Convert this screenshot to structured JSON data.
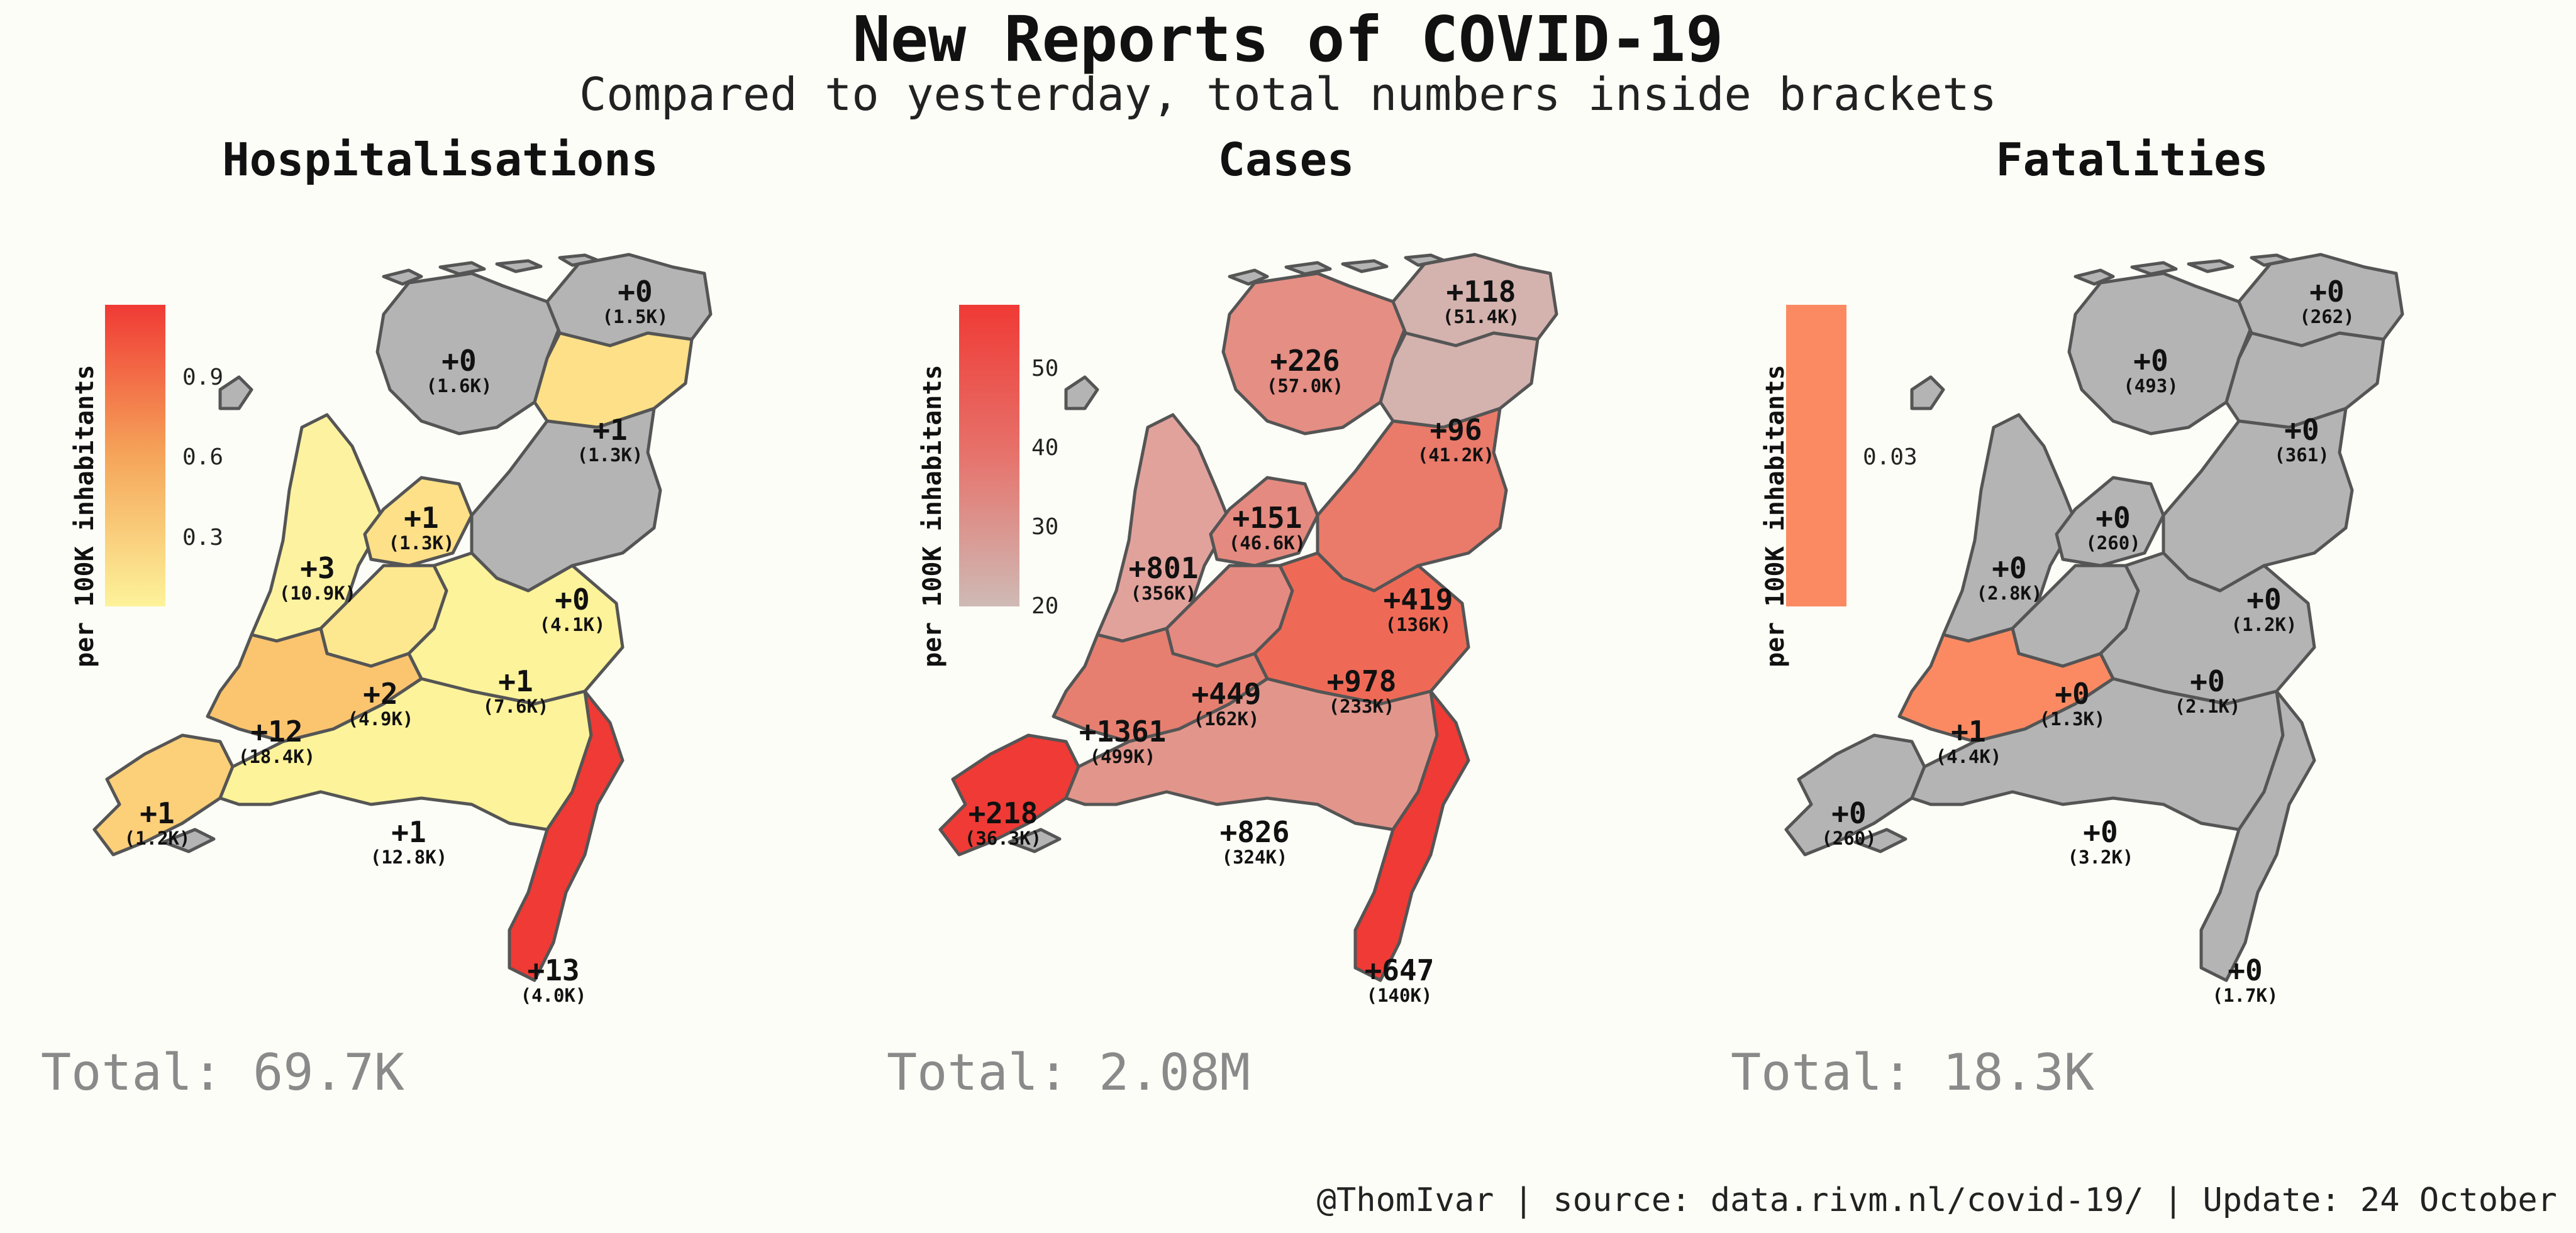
{
  "title": "New Reports of COVID-19",
  "subtitle": "Compared to yesterday, total numbers inside brackets",
  "legend_label": "per 100K inhabitants",
  "footer": "@ThomIvar | source: data.rivm.nl/covid-19/ | Update: 24 October",
  "panels": [
    {
      "title": "Hospitalisations",
      "total": "Total: 69.7K",
      "legend_ticks": [
        "0.9",
        "0.6",
        "0.3"
      ],
      "legend_gradient": [
        "#f03a35",
        "#f5a55a",
        "#fdf39a"
      ],
      "regions": {
        "Groningen": {
          "value": "+0",
          "total": "(1.5K)",
          "color": "#b4b4b4"
        },
        "Friesland": {
          "value": "+0",
          "total": "(1.6K)",
          "color": "#b4b4b4"
        },
        "Drenthe": {
          "value": "+1",
          "total": "(1.3K)",
          "color": "#fde087"
        },
        "Noord-Holland": {
          "value": "+3",
          "total": "(10.9K)",
          "color": "#fdf2a0"
        },
        "Flevoland": {
          "value": "+1",
          "total": "(1.3K)",
          "color": "#fde087"
        },
        "Overijssel": {
          "value": "+0",
          "total": "(4.1K)",
          "color": "#b4b4b4"
        },
        "Utrecht": {
          "value": "+2",
          "total": "(4.9K)",
          "color": "#fde88f"
        },
        "Gelderland": {
          "value": "+1",
          "total": "(7.6K)",
          "color": "#fdf39a"
        },
        "Zuid-Holland": {
          "value": "+12",
          "total": "(18.4K)",
          "color": "#fbc56f"
        },
        "Zeeland": {
          "value": "+1",
          "total": "(1.2K)",
          "color": "#fccf79"
        },
        "Noord-Brabant": {
          "value": "+1",
          "total": "(12.8K)",
          "color": "#fdf39a"
        },
        "Limburg": {
          "value": "+13",
          "total": "(4.0K)",
          "color": "#f03a35"
        }
      }
    },
    {
      "title": "Cases",
      "total": "Total: 2.08M",
      "legend_ticks": [
        "50",
        "40",
        "30",
        "20"
      ],
      "legend_gradient": [
        "#f03a35",
        "#e6736c",
        "#cfbab5"
      ],
      "regions": {
        "Groningen": {
          "value": "+118",
          "total": "(51.4K)",
          "color": "#d4b2ae"
        },
        "Friesland": {
          "value": "+226",
          "total": "(57.0K)",
          "color": "#e58e84"
        },
        "Drenthe": {
          "value": "+96",
          "total": "(41.2K)",
          "color": "#d4b2ae"
        },
        "Noord-Holland": {
          "value": "+801",
          "total": "(356K)",
          "color": "#e2a29c"
        },
        "Flevoland": {
          "value": "+151",
          "total": "(46.6K)",
          "color": "#e58a80"
        },
        "Overijssel": {
          "value": "+419",
          "total": "(136K)",
          "color": "#ea7a6a"
        },
        "Utrecht": {
          "value": "+449",
          "total": "(162K)",
          "color": "#e58a80"
        },
        "Gelderland": {
          "value": "+978",
          "total": "(233K)",
          "color": "#ef6a56"
        },
        "Zuid-Holland": {
          "value": "+1361",
          "total": "(499K)",
          "color": "#e67f70"
        },
        "Zeeland": {
          "value": "+218",
          "total": "(36.3K)",
          "color": "#f03a35"
        },
        "Noord-Brabant": {
          "value": "+826",
          "total": "(324K)",
          "color": "#e2968b"
        },
        "Limburg": {
          "value": "+647",
          "total": "(140K)",
          "color": "#f03a35"
        }
      }
    },
    {
      "title": "Fatalities",
      "total": "Total: 18.3K",
      "legend_ticks": [
        "0.03"
      ],
      "legend_gradient": [
        "#fb8a62",
        "#fb8a62",
        "#fb8a62"
      ],
      "regions": {
        "Groningen": {
          "value": "+0",
          "total": "(262)",
          "color": "#b4b4b4"
        },
        "Friesland": {
          "value": "+0",
          "total": "(493)",
          "color": "#b4b4b4"
        },
        "Drenthe": {
          "value": "+0",
          "total": "(361)",
          "color": "#b4b4b4"
        },
        "Noord-Holland": {
          "value": "+0",
          "total": "(2.8K)",
          "color": "#b4b4b4"
        },
        "Flevoland": {
          "value": "+0",
          "total": "(260)",
          "color": "#b4b4b4"
        },
        "Overijssel": {
          "value": "+0",
          "total": "(1.2K)",
          "color": "#b4b4b4"
        },
        "Utrecht": {
          "value": "+0",
          "total": "(1.3K)",
          "color": "#b4b4b4"
        },
        "Gelderland": {
          "value": "+0",
          "total": "(2.1K)",
          "color": "#b4b4b4"
        },
        "Zuid-Holland": {
          "value": "+1",
          "total": "(4.4K)",
          "color": "#fb8a62"
        },
        "Zeeland": {
          "value": "+0",
          "total": "(260)",
          "color": "#b4b4b4"
        },
        "Noord-Brabant": {
          "value": "+0",
          "total": "(3.2K)",
          "color": "#b4b4b4"
        },
        "Limburg": {
          "value": "+0",
          "total": "(1.7K)",
          "color": "#b4b4b4"
        }
      }
    }
  ]
}
